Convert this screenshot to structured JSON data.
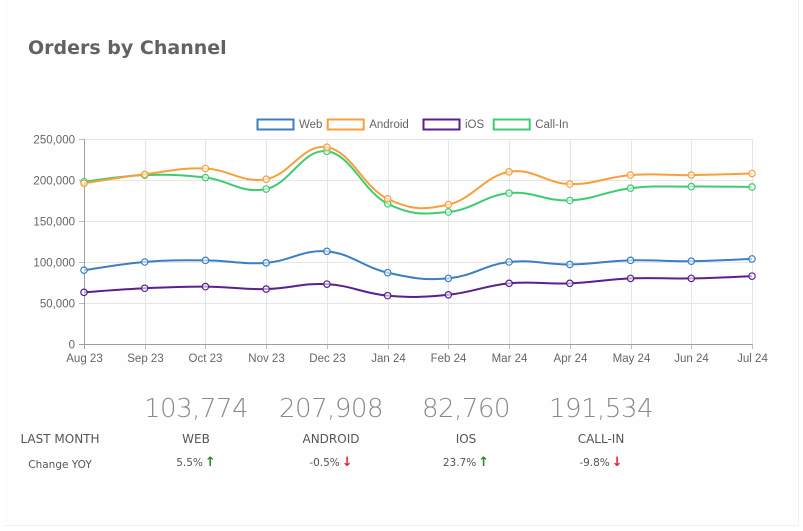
{
  "card": {
    "title": "Orders by Channel"
  },
  "chart_data": {
    "type": "line",
    "title": "",
    "xlabel": "",
    "ylabel": "",
    "categories": [
      "Aug 23",
      "Sep 23",
      "Oct 23",
      "Nov 23",
      "Dec 23",
      "Jan 24",
      "Feb 24",
      "Mar 24",
      "Apr 24",
      "May 24",
      "Jun 24",
      "Jul 24"
    ],
    "ylim": [
      0,
      250000
    ],
    "yticks": [
      0,
      50000,
      100000,
      150000,
      200000,
      250000
    ],
    "ytick_labels": [
      "0",
      "50,000",
      "100,000",
      "150,000",
      "200,000",
      "250,000"
    ],
    "grid": true,
    "legend_position": "top",
    "smooth": true,
    "series": [
      {
        "name": "Web",
        "color": "#3a7fc1",
        "values": [
          90000,
          100000,
          102000,
          99000,
          113000,
          87000,
          80000,
          100000,
          97000,
          102000,
          101000,
          103774
        ]
      },
      {
        "name": "Android",
        "color": "#f7a03a",
        "values": [
          196000,
          207000,
          214000,
          201000,
          240000,
          177000,
          170000,
          210000,
          195000,
          206000,
          206000,
          207908
        ]
      },
      {
        "name": "iOS",
        "color": "#5b1f8e",
        "values": [
          63000,
          68000,
          70000,
          67000,
          73000,
          59000,
          60000,
          74000,
          74000,
          80000,
          80000,
          82760
        ]
      },
      {
        "name": "Call-In",
        "color": "#3dcc71",
        "values": [
          198000,
          206000,
          203000,
          189000,
          235000,
          171000,
          161000,
          184000,
          175000,
          190000,
          192000,
          191534
        ]
      }
    ]
  },
  "stats": {
    "row_label": "LAST MONTH",
    "change_label": "Change YOY",
    "items": [
      {
        "value": "103,774",
        "name": "WEB",
        "change": "5.5%",
        "direction": "up",
        "arrow": "↑"
      },
      {
        "value": "207,908",
        "name": "ANDROID",
        "change": "-0.5%",
        "direction": "down",
        "arrow": "↓"
      },
      {
        "value": "82,760",
        "name": "IOS",
        "change": "23.7%",
        "direction": "up",
        "arrow": "↑"
      },
      {
        "value": "191,534",
        "name": "CALL-IN",
        "change": "-9.8%",
        "direction": "down",
        "arrow": "↓"
      }
    ]
  }
}
